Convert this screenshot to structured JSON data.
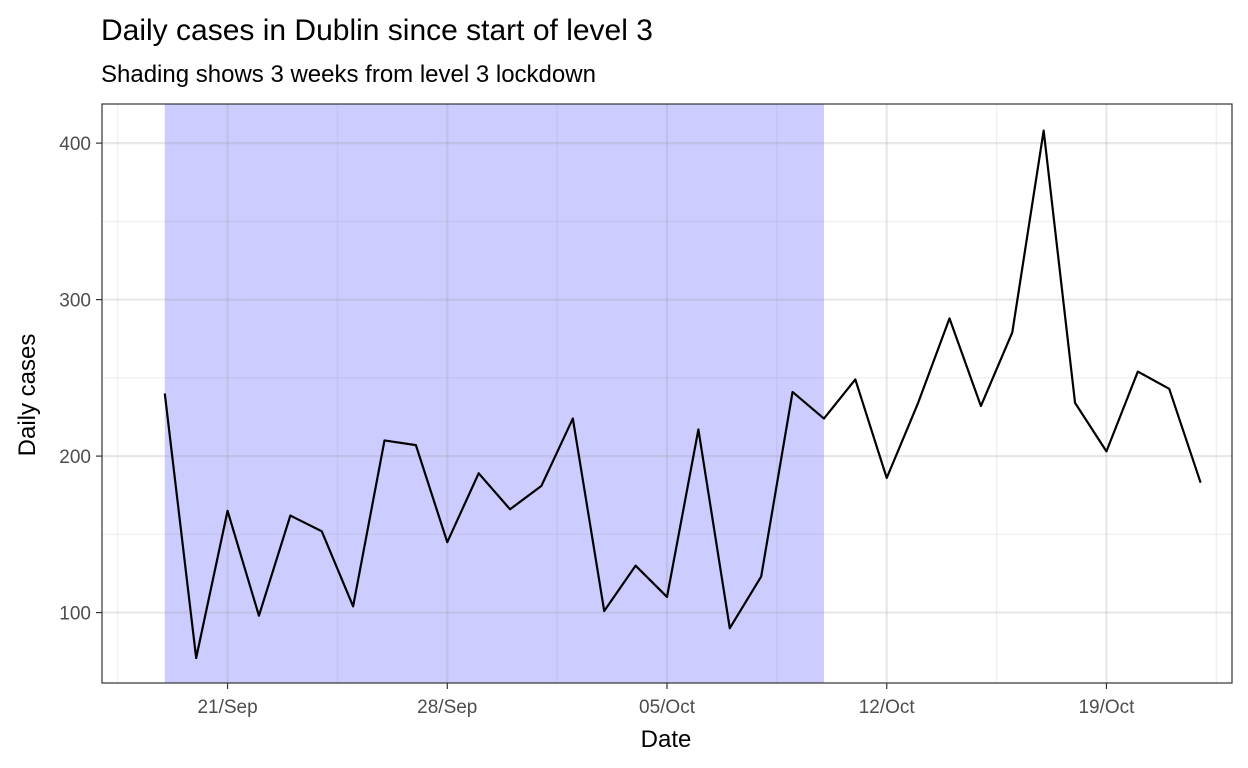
{
  "chart_data": {
    "type": "line",
    "title": "Daily cases in Dublin since start of level 3",
    "subtitle": "Shading shows 3 weeks from level 3 lockdown",
    "xlabel": "Date",
    "ylabel": "Daily cases",
    "x_ticks": [
      "21/Sep",
      "28/Sep",
      "05/Oct",
      "12/Oct",
      "19/Oct"
    ],
    "y_ticks": [
      100,
      200,
      300,
      400
    ],
    "ylim": [
      55,
      425
    ],
    "xlim": [
      "2020-09-17",
      "2020-10-23"
    ],
    "shaded_range": {
      "from": "2020-09-19",
      "to": "2020-10-10",
      "color": "#ccccff"
    },
    "line_color": "#000000",
    "grid": true,
    "series": [
      {
        "x": [
          "2020-09-19",
          "2020-09-20",
          "2020-09-21",
          "2020-09-22",
          "2020-09-23",
          "2020-09-24",
          "2020-09-25",
          "2020-09-26",
          "2020-09-27",
          "2020-09-28",
          "2020-09-29",
          "2020-09-30",
          "2020-10-01",
          "2020-10-02",
          "2020-10-03",
          "2020-10-04",
          "2020-10-05",
          "2020-10-06",
          "2020-10-07",
          "2020-10-08",
          "2020-10-09",
          "2020-10-10",
          "2020-10-11",
          "2020-10-12",
          "2020-10-13",
          "2020-10-14",
          "2020-10-15",
          "2020-10-16",
          "2020-10-17",
          "2020-10-18",
          "2020-10-19",
          "2020-10-20",
          "2020-10-21",
          "2020-10-22"
        ],
        "values": [
          240,
          71,
          165,
          98,
          162,
          152,
          104,
          210,
          207,
          145,
          189,
          166,
          181,
          224,
          101,
          130,
          110,
          217,
          90,
          123,
          241,
          224,
          249,
          186,
          234,
          288,
          232,
          279,
          408,
          234,
          203,
          254,
          243,
          183
        ]
      }
    ]
  }
}
